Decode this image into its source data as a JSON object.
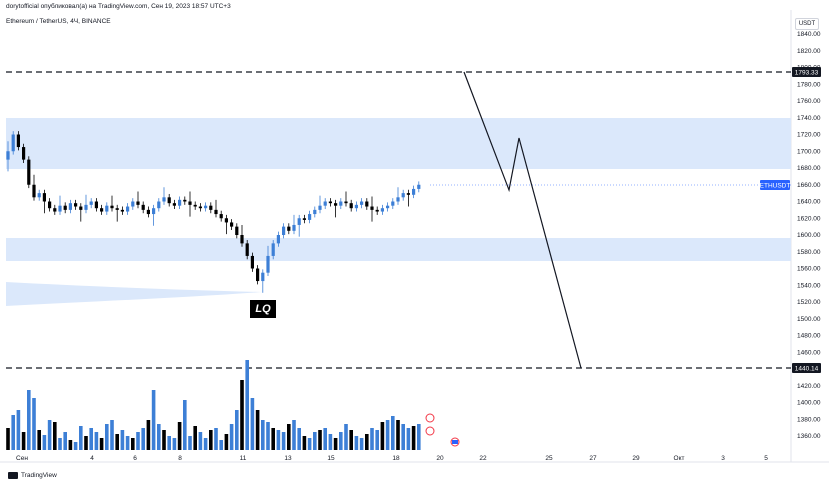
{
  "header": {
    "author_line": "dorytofficial опубликовал(а) на TradingView.com, Сен 19, 2023 18:57 UTC+3",
    "symbol_line": "Ethereum / TetherUS, 4Ч, BINANCE",
    "currency_unit": "USDT",
    "brand": "TradingView"
  },
  "annotations": {
    "lq_label": "LQ"
  },
  "price_tags": {
    "upper_level": "1793.33",
    "lower_level": "1440.14",
    "symbol_tag": "ETHUSDT"
  },
  "colors": {
    "zone_fill": "#dbe8fb",
    "bull": "#3d7fd6",
    "bear": "#000000",
    "tag_bg": "#131722",
    "symbol_tag_bg": "#2962ff"
  },
  "chart_data": {
    "type": "candlestick",
    "title": "Ethereum / TetherUS, 4Ч, BINANCE",
    "y_ticks": [
      "1840.00",
      "1820.00",
      "1800.00",
      "1780.00",
      "1760.00",
      "1740.00",
      "1720.00",
      "1700.00",
      "1680.00",
      "1660.00",
      "1640.00",
      "1620.00",
      "1600.00",
      "1580.00",
      "1560.00",
      "1540.00",
      "1520.00",
      "1500.00",
      "1480.00",
      "1460.00",
      "1440.00",
      "1420.00",
      "1400.00",
      "1380.00",
      "1360.00"
    ],
    "x_ticks": [
      "Сен",
      "4",
      "6",
      "8",
      "11",
      "13",
      "15",
      "18",
      "20",
      "22",
      "25",
      "27",
      "29",
      "Окт",
      "3",
      "5"
    ],
    "ylim": [
      1345,
      1850
    ],
    "horizontal_levels": [
      1793.33,
      1440.14
    ],
    "zones": [
      {
        "from": 1678,
        "to": 1740
      },
      {
        "from": 1568,
        "to": 1595
      }
    ],
    "current_price": 1660,
    "projection_path": [
      [
        1,
        1793
      ],
      [
        2,
        1655
      ],
      [
        3,
        1713
      ],
      [
        4,
        1440
      ]
    ],
    "ohlc_samples": [
      {
        "x": "Сен",
        "o": 1700,
        "h": 1730,
        "l": 1690,
        "c": 1720
      },
      {
        "x": "Сен",
        "o": 1700,
        "h": 1712,
        "l": 1640,
        "c": 1650
      },
      {
        "x": "4",
        "o": 1630,
        "h": 1645,
        "l": 1620,
        "c": 1638
      },
      {
        "x": "6",
        "o": 1632,
        "h": 1640,
        "l": 1622,
        "c": 1628
      },
      {
        "x": "8",
        "o": 1636,
        "h": 1660,
        "l": 1625,
        "c": 1640
      },
      {
        "x": "11",
        "o": 1575,
        "h": 1595,
        "l": 1535,
        "c": 1545
      },
      {
        "x": "13",
        "o": 1605,
        "h": 1625,
        "l": 1595,
        "c": 1620
      },
      {
        "x": "15",
        "o": 1630,
        "h": 1645,
        "l": 1625,
        "c": 1640
      },
      {
        "x": "18",
        "o": 1648,
        "h": 1670,
        "l": 1635,
        "c": 1660
      }
    ]
  }
}
